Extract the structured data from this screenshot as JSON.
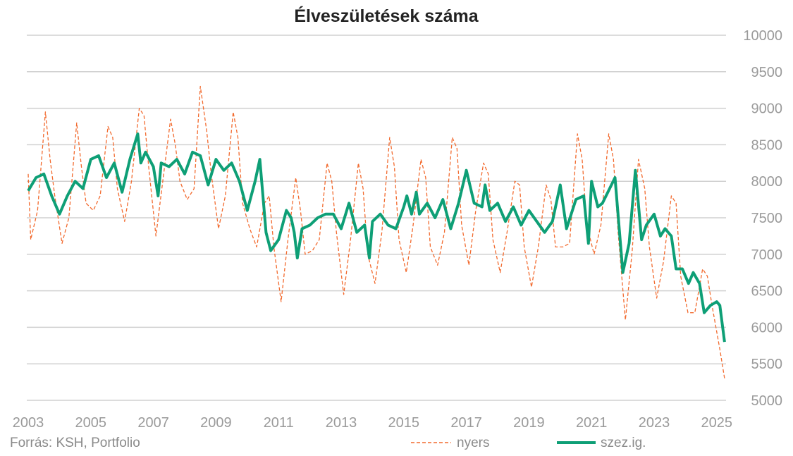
{
  "chart_data": {
    "type": "line",
    "title": "Élveszületések száma",
    "source": "Forrás: KSH, Portfolio",
    "xlabel": "",
    "ylabel": "",
    "xlim": [
      2003,
      2025.4
    ],
    "ylim": [
      5000,
      10000
    ],
    "x_ticks": [
      "2003",
      "2005",
      "2007",
      "2009",
      "2011",
      "2013",
      "2015",
      "2017",
      "2019",
      "2021",
      "2023",
      "2025"
    ],
    "y_ticks": [
      "10000",
      "9500",
      "9000",
      "8500",
      "8000",
      "7500",
      "7000",
      "6500",
      "6000",
      "5500",
      "5000"
    ],
    "grid": true,
    "legend_position": "bottom",
    "colors": {
      "nyers": "#f26a2e",
      "szez": "#0e9f76",
      "grid": "#d0d0d0"
    },
    "series": [
      {
        "name": "nyers",
        "style": "dashed",
        "points": [
          [
            2003.0,
            8100
          ],
          [
            2003.08,
            7200
          ],
          [
            2003.3,
            7600
          ],
          [
            2003.55,
            8950
          ],
          [
            2003.7,
            8300
          ],
          [
            2003.85,
            7800
          ],
          [
            2004.08,
            7150
          ],
          [
            2004.3,
            7500
          ],
          [
            2004.55,
            8800
          ],
          [
            2004.7,
            8200
          ],
          [
            2004.85,
            7700
          ],
          [
            2005.08,
            7600
          ],
          [
            2005.3,
            7800
          ],
          [
            2005.55,
            8750
          ],
          [
            2005.7,
            8600
          ],
          [
            2005.85,
            7900
          ],
          [
            2006.08,
            7450
          ],
          [
            2006.3,
            8000
          ],
          [
            2006.55,
            9000
          ],
          [
            2006.7,
            8900
          ],
          [
            2006.85,
            8200
          ],
          [
            2007.08,
            7250
          ],
          [
            2007.3,
            8000
          ],
          [
            2007.55,
            8850
          ],
          [
            2007.7,
            8500
          ],
          [
            2007.85,
            8000
          ],
          [
            2008.08,
            7750
          ],
          [
            2008.3,
            7900
          ],
          [
            2008.5,
            9300
          ],
          [
            2008.7,
            8700
          ],
          [
            2008.85,
            8100
          ],
          [
            2009.08,
            7350
          ],
          [
            2009.3,
            7800
          ],
          [
            2009.55,
            8950
          ],
          [
            2009.7,
            8600
          ],
          [
            2009.85,
            7700
          ],
          [
            2010.08,
            7350
          ],
          [
            2010.3,
            7100
          ],
          [
            2010.55,
            7700
          ],
          [
            2010.7,
            7800
          ],
          [
            2010.85,
            7100
          ],
          [
            2011.08,
            6350
          ],
          [
            2011.3,
            7200
          ],
          [
            2011.55,
            8050
          ],
          [
            2011.7,
            7600
          ],
          [
            2011.85,
            7000
          ],
          [
            2012.08,
            7050
          ],
          [
            2012.3,
            7200
          ],
          [
            2012.55,
            8250
          ],
          [
            2012.7,
            8000
          ],
          [
            2012.85,
            7300
          ],
          [
            2013.08,
            6450
          ],
          [
            2013.3,
            7200
          ],
          [
            2013.55,
            8250
          ],
          [
            2013.7,
            7900
          ],
          [
            2013.85,
            7000
          ],
          [
            2014.08,
            6600
          ],
          [
            2014.3,
            7300
          ],
          [
            2014.55,
            8600
          ],
          [
            2014.7,
            8200
          ],
          [
            2014.85,
            7200
          ],
          [
            2015.08,
            6750
          ],
          [
            2015.3,
            7400
          ],
          [
            2015.55,
            8300
          ],
          [
            2015.7,
            8050
          ],
          [
            2015.85,
            7100
          ],
          [
            2016.08,
            6850
          ],
          [
            2016.3,
            7300
          ],
          [
            2016.55,
            8600
          ],
          [
            2016.7,
            8450
          ],
          [
            2016.85,
            7400
          ],
          [
            2017.08,
            6850
          ],
          [
            2017.3,
            7600
          ],
          [
            2017.55,
            8250
          ],
          [
            2017.7,
            8100
          ],
          [
            2017.85,
            7200
          ],
          [
            2018.08,
            6750
          ],
          [
            2018.3,
            7300
          ],
          [
            2018.55,
            8000
          ],
          [
            2018.7,
            7950
          ],
          [
            2018.85,
            7100
          ],
          [
            2019.08,
            6550
          ],
          [
            2019.3,
            7100
          ],
          [
            2019.55,
            7950
          ],
          [
            2019.7,
            7750
          ],
          [
            2019.85,
            7100
          ],
          [
            2020.08,
            7100
          ],
          [
            2020.3,
            7150
          ],
          [
            2020.55,
            8650
          ],
          [
            2020.7,
            8300
          ],
          [
            2020.85,
            7400
          ],
          [
            2021.08,
            7000
          ],
          [
            2021.3,
            7400
          ],
          [
            2021.55,
            8650
          ],
          [
            2021.7,
            8300
          ],
          [
            2021.85,
            7300
          ],
          [
            2022.08,
            6100
          ],
          [
            2022.3,
            7050
          ],
          [
            2022.5,
            8300
          ],
          [
            2022.7,
            7900
          ],
          [
            2022.85,
            7100
          ],
          [
            2023.08,
            6400
          ],
          [
            2023.3,
            6900
          ],
          [
            2023.55,
            7800
          ],
          [
            2023.7,
            7700
          ],
          [
            2023.85,
            6700
          ],
          [
            2024.08,
            6200
          ],
          [
            2024.3,
            6200
          ],
          [
            2024.55,
            6800
          ],
          [
            2024.7,
            6700
          ],
          [
            2024.85,
            6300
          ],
          [
            2025.1,
            5700
          ],
          [
            2025.25,
            5300
          ]
        ]
      },
      {
        "name": "szez.ig.",
        "style": "solid",
        "points": [
          [
            2003.0,
            7870
          ],
          [
            2003.25,
            8050
          ],
          [
            2003.5,
            8100
          ],
          [
            2003.75,
            7800
          ],
          [
            2004.0,
            7550
          ],
          [
            2004.25,
            7800
          ],
          [
            2004.5,
            8000
          ],
          [
            2004.75,
            7900
          ],
          [
            2005.0,
            8300
          ],
          [
            2005.25,
            8350
          ],
          [
            2005.5,
            8050
          ],
          [
            2005.75,
            8250
          ],
          [
            2006.0,
            7850
          ],
          [
            2006.25,
            8300
          ],
          [
            2006.5,
            8650
          ],
          [
            2006.6,
            8250
          ],
          [
            2006.75,
            8400
          ],
          [
            2007.0,
            8200
          ],
          [
            2007.15,
            7800
          ],
          [
            2007.25,
            8250
          ],
          [
            2007.5,
            8200
          ],
          [
            2007.75,
            8300
          ],
          [
            2008.0,
            8100
          ],
          [
            2008.25,
            8400
          ],
          [
            2008.5,
            8350
          ],
          [
            2008.75,
            7950
          ],
          [
            2009.0,
            8300
          ],
          [
            2009.25,
            8150
          ],
          [
            2009.5,
            8250
          ],
          [
            2009.75,
            8000
          ],
          [
            2010.0,
            7600
          ],
          [
            2010.25,
            8000
          ],
          [
            2010.4,
            8300
          ],
          [
            2010.6,
            7300
          ],
          [
            2010.75,
            7050
          ],
          [
            2011.0,
            7200
          ],
          [
            2011.25,
            7600
          ],
          [
            2011.4,
            7500
          ],
          [
            2011.5,
            7300
          ],
          [
            2011.6,
            6950
          ],
          [
            2011.75,
            7350
          ],
          [
            2012.0,
            7400
          ],
          [
            2012.25,
            7500
          ],
          [
            2012.5,
            7550
          ],
          [
            2012.75,
            7550
          ],
          [
            2013.0,
            7350
          ],
          [
            2013.25,
            7700
          ],
          [
            2013.5,
            7300
          ],
          [
            2013.75,
            7400
          ],
          [
            2013.9,
            6950
          ],
          [
            2014.0,
            7450
          ],
          [
            2014.25,
            7550
          ],
          [
            2014.5,
            7400
          ],
          [
            2014.75,
            7350
          ],
          [
            2015.0,
            7650
          ],
          [
            2015.1,
            7800
          ],
          [
            2015.25,
            7550
          ],
          [
            2015.4,
            7850
          ],
          [
            2015.5,
            7550
          ],
          [
            2015.75,
            7700
          ],
          [
            2016.0,
            7500
          ],
          [
            2016.25,
            7750
          ],
          [
            2016.5,
            7350
          ],
          [
            2016.75,
            7700
          ],
          [
            2017.0,
            8150
          ],
          [
            2017.25,
            7700
          ],
          [
            2017.5,
            7650
          ],
          [
            2017.6,
            7950
          ],
          [
            2017.75,
            7600
          ],
          [
            2018.0,
            7700
          ],
          [
            2018.25,
            7450
          ],
          [
            2018.5,
            7650
          ],
          [
            2018.75,
            7400
          ],
          [
            2019.0,
            7600
          ],
          [
            2019.25,
            7450
          ],
          [
            2019.5,
            7300
          ],
          [
            2019.75,
            7450
          ],
          [
            2020.0,
            7950
          ],
          [
            2020.2,
            7350
          ],
          [
            2020.5,
            7750
          ],
          [
            2020.75,
            7800
          ],
          [
            2020.9,
            7150
          ],
          [
            2021.0,
            8000
          ],
          [
            2021.2,
            7650
          ],
          [
            2021.35,
            7700
          ],
          [
            2021.75,
            8050
          ],
          [
            2022.0,
            6750
          ],
          [
            2022.2,
            7150
          ],
          [
            2022.4,
            8150
          ],
          [
            2022.6,
            7200
          ],
          [
            2022.75,
            7400
          ],
          [
            2023.0,
            7550
          ],
          [
            2023.2,
            7250
          ],
          [
            2023.35,
            7350
          ],
          [
            2023.55,
            7250
          ],
          [
            2023.7,
            6800
          ],
          [
            2023.9,
            6800
          ],
          [
            2024.1,
            6600
          ],
          [
            2024.25,
            6750
          ],
          [
            2024.45,
            6600
          ],
          [
            2024.6,
            6200
          ],
          [
            2024.8,
            6300
          ],
          [
            2025.0,
            6350
          ],
          [
            2025.1,
            6300
          ],
          [
            2025.25,
            5800
          ]
        ]
      }
    ]
  },
  "legend": {
    "raw_label": "nyers",
    "sa_label": "szez.ig."
  }
}
